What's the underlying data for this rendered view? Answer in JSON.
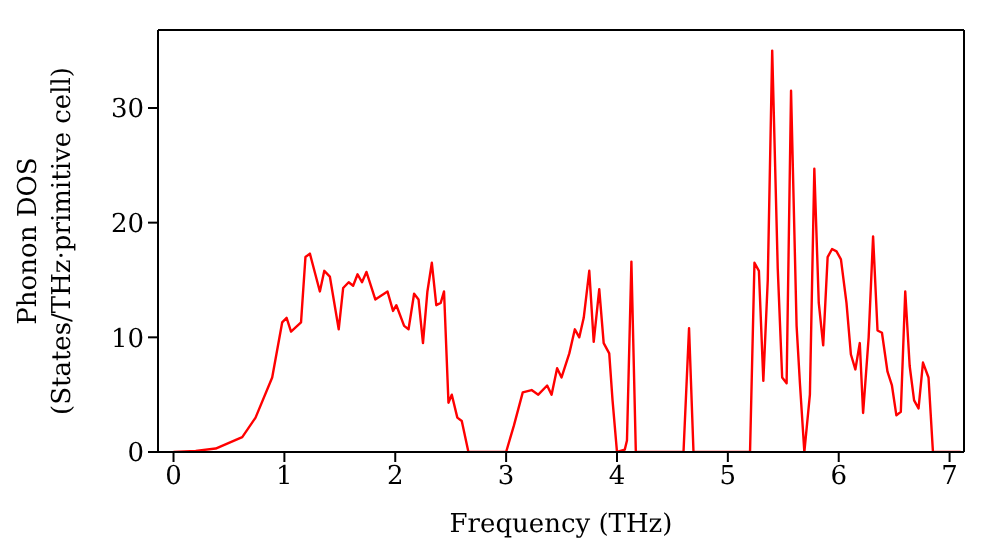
{
  "chart_data": {
    "type": "line",
    "xlabel": "Frequency (THz)",
    "ylabel": "Phonon DOS\n(States/THz·primitive cell)",
    "xlim": [
      -0.14,
      7.13
    ],
    "ylim": [
      0,
      36.8
    ],
    "xticks": [
      0,
      1,
      2,
      3,
      4,
      5,
      6,
      7
    ],
    "yticks": [
      0,
      10,
      20,
      30
    ],
    "marker": "none",
    "line_style": "solid",
    "series": [
      {
        "color": "#ff0000",
        "x": [
          0,
          0.2,
          0.38,
          0.62,
          0.74,
          0.89,
          0.98,
          1.02,
          1.06,
          1.15,
          1.19,
          1.23,
          1.32,
          1.36,
          1.41,
          1.49,
          1.53,
          1.58,
          1.62,
          1.66,
          1.7,
          1.74,
          1.82,
          1.93,
          1.98,
          2.01,
          2.08,
          2.12,
          2.17,
          2.21,
          2.25,
          2.29,
          2.33,
          2.37,
          2.41,
          2.44,
          2.48,
          2.51,
          2.56,
          2.6,
          2.66,
          3.0,
          3.07,
          3.15,
          3.23,
          3.29,
          3.37,
          3.41,
          3.46,
          3.5,
          3.57,
          3.62,
          3.66,
          3.7,
          3.75,
          3.79,
          3.84,
          3.88,
          3.93,
          3.96,
          4.0,
          4.07,
          4.09,
          4.13,
          4.17,
          4.6,
          4.65,
          4.69,
          5.2,
          5.24,
          5.28,
          5.32,
          5.36,
          5.4,
          5.45,
          5.49,
          5.53,
          5.57,
          5.62,
          5.65,
          5.69,
          5.74,
          5.78,
          5.82,
          5.86,
          5.9,
          5.94,
          5.98,
          6.02,
          6.07,
          6.11,
          6.15,
          6.19,
          6.22,
          6.27,
          6.31,
          6.35,
          6.39,
          6.44,
          6.48,
          6.52,
          6.56,
          6.6,
          6.64,
          6.68,
          6.72,
          6.76,
          6.81,
          6.85,
          7.1
        ],
        "values": [
          0,
          0.1,
          0.3,
          1.3,
          3,
          6.5,
          11.3,
          11.7,
          10.5,
          11.3,
          17,
          17.3,
          14,
          15.8,
          15.3,
          10.7,
          14.3,
          14.8,
          14.5,
          15.5,
          14.8,
          15.7,
          13.3,
          14,
          12.3,
          12.8,
          11,
          10.7,
          13.8,
          13.3,
          9.5,
          14,
          16.5,
          12.8,
          13,
          14,
          4.3,
          5,
          3,
          2.7,
          0,
          0,
          2.3,
          5.2,
          5.4,
          5,
          5.8,
          5,
          7.3,
          6.5,
          8.6,
          10.7,
          10,
          11.7,
          15.8,
          9.6,
          14.2,
          9.5,
          8.6,
          4.5,
          0,
          0.2,
          1,
          16.6,
          0,
          0,
          10.8,
          0,
          0,
          16.5,
          15.8,
          6.2,
          15,
          35,
          16,
          6.5,
          6,
          31.5,
          11,
          6,
          0,
          5,
          24.7,
          13,
          9.3,
          17,
          17.7,
          17.5,
          16.8,
          13,
          8.5,
          7.2,
          9.5,
          3.4,
          10,
          18.8,
          10.6,
          10.4,
          7,
          5.8,
          3.2,
          3.5,
          14,
          7.5,
          4.5,
          3.8,
          7.8,
          6.5,
          0,
          0
        ]
      }
    ]
  }
}
